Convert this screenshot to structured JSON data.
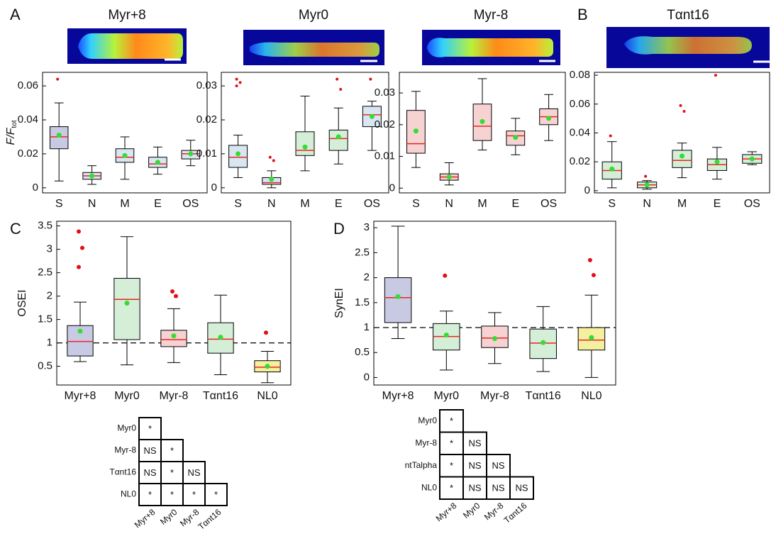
{
  "panels": [
    "A",
    "B",
    "C",
    "D"
  ],
  "chart_data": [
    {
      "type": "box",
      "title": "Myr+8",
      "ylabel": "F/F",
      "ylabel_sub": "tot",
      "categories": [
        "S",
        "N",
        "M",
        "E",
        "OS"
      ],
      "ylim": [
        -0.003,
        0.068
      ],
      "yticks": [
        0,
        0.02,
        0.04,
        0.06
      ],
      "boxes": [
        {
          "low": 0.004,
          "q1": 0.023,
          "median": 0.03,
          "q3": 0.036,
          "high": 0.05,
          "mean": 0.031,
          "outliers": [
            0.064
          ],
          "color": "#c8cae4"
        },
        {
          "low": 0.002,
          "q1": 0.005,
          "median": 0.007,
          "q3": 0.009,
          "high": 0.013,
          "mean": 0.007,
          "outliers": [],
          "color": "#d8e6f2"
        },
        {
          "low": 0.005,
          "q1": 0.015,
          "median": 0.018,
          "q3": 0.023,
          "high": 0.03,
          "mean": 0.019,
          "outliers": [],
          "color": "#d8e6f2"
        },
        {
          "low": 0.008,
          "q1": 0.012,
          "median": 0.014,
          "q3": 0.018,
          "high": 0.024,
          "mean": 0.015,
          "outliers": [],
          "color": "#d8e6f2"
        },
        {
          "low": 0.013,
          "q1": 0.017,
          "median": 0.02,
          "q3": 0.022,
          "high": 0.028,
          "mean": 0.02,
          "outliers": [],
          "color": "#d8e6f2"
        }
      ]
    },
    {
      "type": "box",
      "title": "Myr0",
      "categories": [
        "S",
        "N",
        "M",
        "E",
        "OS"
      ],
      "ylim": [
        -0.0015,
        0.034
      ],
      "yticks": [
        0,
        0.01,
        0.02,
        0.03
      ],
      "boxes": [
        {
          "low": 0.003,
          "q1": 0.006,
          "median": 0.009,
          "q3": 0.0125,
          "high": 0.0155,
          "mean": 0.01,
          "outliers": [
            0.032,
            0.031,
            0.03
          ],
          "color": "#d8e6f2"
        },
        {
          "low": 0,
          "q1": 0.001,
          "median": 0.0015,
          "q3": 0.003,
          "high": 0.005,
          "mean": 0.0025,
          "outliers": [
            0.009,
            0.008
          ],
          "color": "#d8e6f2"
        },
        {
          "low": 0.005,
          "q1": 0.0095,
          "median": 0.011,
          "q3": 0.0165,
          "high": 0.027,
          "mean": 0.012,
          "outliers": [],
          "color": "#d4eed8"
        },
        {
          "low": 0.007,
          "q1": 0.011,
          "median": 0.0145,
          "q3": 0.017,
          "high": 0.0235,
          "mean": 0.015,
          "outliers": [
            0.032,
            0.029
          ],
          "color": "#d4eed8"
        },
        {
          "low": 0.011,
          "q1": 0.018,
          "median": 0.0215,
          "q3": 0.024,
          "high": 0.0255,
          "mean": 0.021,
          "outliers": [
            0.032
          ],
          "color": "#d8e6f2"
        }
      ]
    },
    {
      "type": "box",
      "title": "Myr-8",
      "categories": [
        "S",
        "N",
        "M",
        "E",
        "OS"
      ],
      "ylim": [
        -0.0015,
        0.0365
      ],
      "yticks": [
        0,
        0.01,
        0.02,
        0.03
      ],
      "boxes": [
        {
          "low": 0.0065,
          "q1": 0.011,
          "median": 0.014,
          "q3": 0.0245,
          "high": 0.0305,
          "mean": 0.018,
          "outliers": [],
          "color": "#f6d2d2"
        },
        {
          "low": 0.001,
          "q1": 0.0025,
          "median": 0.0035,
          "q3": 0.0045,
          "high": 0.008,
          "mean": 0.0035,
          "outliers": [],
          "color": "#f6d2d2"
        },
        {
          "low": 0.012,
          "q1": 0.015,
          "median": 0.0195,
          "q3": 0.0265,
          "high": 0.0345,
          "mean": 0.021,
          "outliers": [],
          "color": "#f6d2d2"
        },
        {
          "low": 0.0105,
          "q1": 0.0135,
          "median": 0.0165,
          "q3": 0.018,
          "high": 0.022,
          "mean": 0.016,
          "outliers": [],
          "color": "#f6d2d2"
        },
        {
          "low": 0.015,
          "q1": 0.02,
          "median": 0.0225,
          "q3": 0.025,
          "high": 0.0295,
          "mean": 0.022,
          "outliers": [],
          "color": "#f6d2d2"
        }
      ]
    },
    {
      "type": "box",
      "title": "Tαnt16",
      "categories": [
        "S",
        "N",
        "M",
        "E",
        "OS"
      ],
      "ylim": [
        -0.0015,
        0.082
      ],
      "yticks": [
        0,
        0.02,
        0.04,
        0.06,
        0.08
      ],
      "boxes": [
        {
          "low": 0.002,
          "q1": 0.008,
          "median": 0.014,
          "q3": 0.02,
          "high": 0.034,
          "mean": 0.015,
          "outliers": [
            0.038
          ],
          "color": "#d4eed8"
        },
        {
          "low": 0.001,
          "q1": 0.002,
          "median": 0.004,
          "q3": 0.006,
          "high": 0.007,
          "mean": 0.004,
          "outliers": [
            0.01
          ],
          "color": "#d4eed8"
        },
        {
          "low": 0.009,
          "q1": 0.016,
          "median": 0.021,
          "q3": 0.028,
          "high": 0.033,
          "mean": 0.024,
          "outliers": [
            0.059,
            0.055
          ],
          "color": "#d4eed8"
        },
        {
          "low": 0.008,
          "q1": 0.014,
          "median": 0.018,
          "q3": 0.022,
          "high": 0.03,
          "mean": 0.02,
          "outliers": [
            0.08
          ],
          "color": "#d4eed8"
        },
        {
          "low": 0.018,
          "q1": 0.019,
          "median": 0.022,
          "q3": 0.025,
          "high": 0.027,
          "mean": 0.022,
          "outliers": [],
          "color": "#d4eed8"
        }
      ]
    },
    {
      "type": "box",
      "ylabel": "OSEI",
      "categories": [
        "Myr+8",
        "Myr0",
        "Myr-8",
        "Tαnt16",
        "NL0"
      ],
      "ylim": [
        0.1,
        3.6
      ],
      "yticks": [
        0.5,
        1,
        1.5,
        2,
        2.5,
        3,
        3.5
      ],
      "reference_line": 1,
      "boxes": [
        {
          "low": 0.6,
          "q1": 0.72,
          "median": 1.03,
          "q3": 1.37,
          "high": 1.87,
          "mean": 1.25,
          "outliers": [
            3.38,
            3.03,
            2.62
          ],
          "color": "#c8cae4"
        },
        {
          "low": 0.53,
          "q1": 1.07,
          "median": 1.93,
          "q3": 2.38,
          "high": 3.27,
          "mean": 1.85,
          "outliers": [],
          "color": "#d4eed8"
        },
        {
          "low": 0.58,
          "q1": 0.92,
          "median": 1.07,
          "q3": 1.27,
          "high": 1.73,
          "mean": 1.15,
          "outliers": [
            2.1,
            2.0
          ],
          "color": "#f6d2d2"
        },
        {
          "low": 0.32,
          "q1": 0.78,
          "median": 1.08,
          "q3": 1.43,
          "high": 2.02,
          "mean": 1.12,
          "outliers": [],
          "color": "#d4eed8"
        },
        {
          "low": 0.15,
          "q1": 0.38,
          "median": 0.48,
          "q3": 0.62,
          "high": 0.82,
          "mean": 0.5,
          "outliers": [
            1.22
          ],
          "color": "#f4f0a0"
        }
      ]
    },
    {
      "type": "box",
      "ylabel": "SynEI",
      "categories": [
        "Myr+8",
        "Myr0",
        "Myr-8",
        "Tαnt16",
        "NL0"
      ],
      "ylim": [
        -0.15,
        3.13
      ],
      "yticks": [
        0,
        0.5,
        1,
        1.5,
        2,
        2.5,
        3
      ],
      "reference_line": 1,
      "boxes": [
        {
          "low": 0.78,
          "q1": 1.1,
          "median": 1.6,
          "q3": 2.0,
          "high": 3.03,
          "mean": 1.62,
          "outliers": [],
          "color": "#c8cae4"
        },
        {
          "low": 0.15,
          "q1": 0.55,
          "median": 0.82,
          "q3": 1.08,
          "high": 1.33,
          "mean": 0.85,
          "outliers": [
            2.04
          ],
          "color": "#d4eed8"
        },
        {
          "low": 0.28,
          "q1": 0.6,
          "median": 0.79,
          "q3": 1.03,
          "high": 1.3,
          "mean": 0.78,
          "outliers": [],
          "color": "#f6d2d2"
        },
        {
          "low": 0.12,
          "q1": 0.38,
          "median": 0.69,
          "q3": 0.97,
          "high": 1.42,
          "mean": 0.7,
          "outliers": [],
          "color": "#d4eed8"
        },
        {
          "low": 0,
          "q1": 0.55,
          "median": 0.75,
          "q3": 1.0,
          "high": 1.65,
          "mean": 0.8,
          "outliers": [
            2.35,
            2.05
          ],
          "color": "#f4f0a0"
        }
      ]
    }
  ],
  "significance_tables": [
    {
      "rows": [
        "Myr0",
        "Myr-8",
        "Tαnt16",
        "NL0"
      ],
      "columns": [
        "Myr+8",
        "Myr0",
        "Myr-8",
        "Tαnt16"
      ],
      "cells": [
        [
          "*"
        ],
        [
          "NS",
          "*"
        ],
        [
          "NS",
          "*",
          "NS"
        ],
        [
          "*",
          "*",
          "*",
          "*"
        ]
      ]
    },
    {
      "rows": [
        "Myr0",
        "Myr-8",
        "ntTalpha",
        "NL0"
      ],
      "columns": [
        "Myr+8",
        "Myr0",
        "Myr-8",
        "Tαnt16"
      ],
      "cells": [
        [
          "*"
        ],
        [
          "*",
          "NS"
        ],
        [
          "*",
          "NS",
          "NS"
        ],
        [
          "*",
          "NS",
          "NS",
          "NS"
        ]
      ]
    }
  ]
}
